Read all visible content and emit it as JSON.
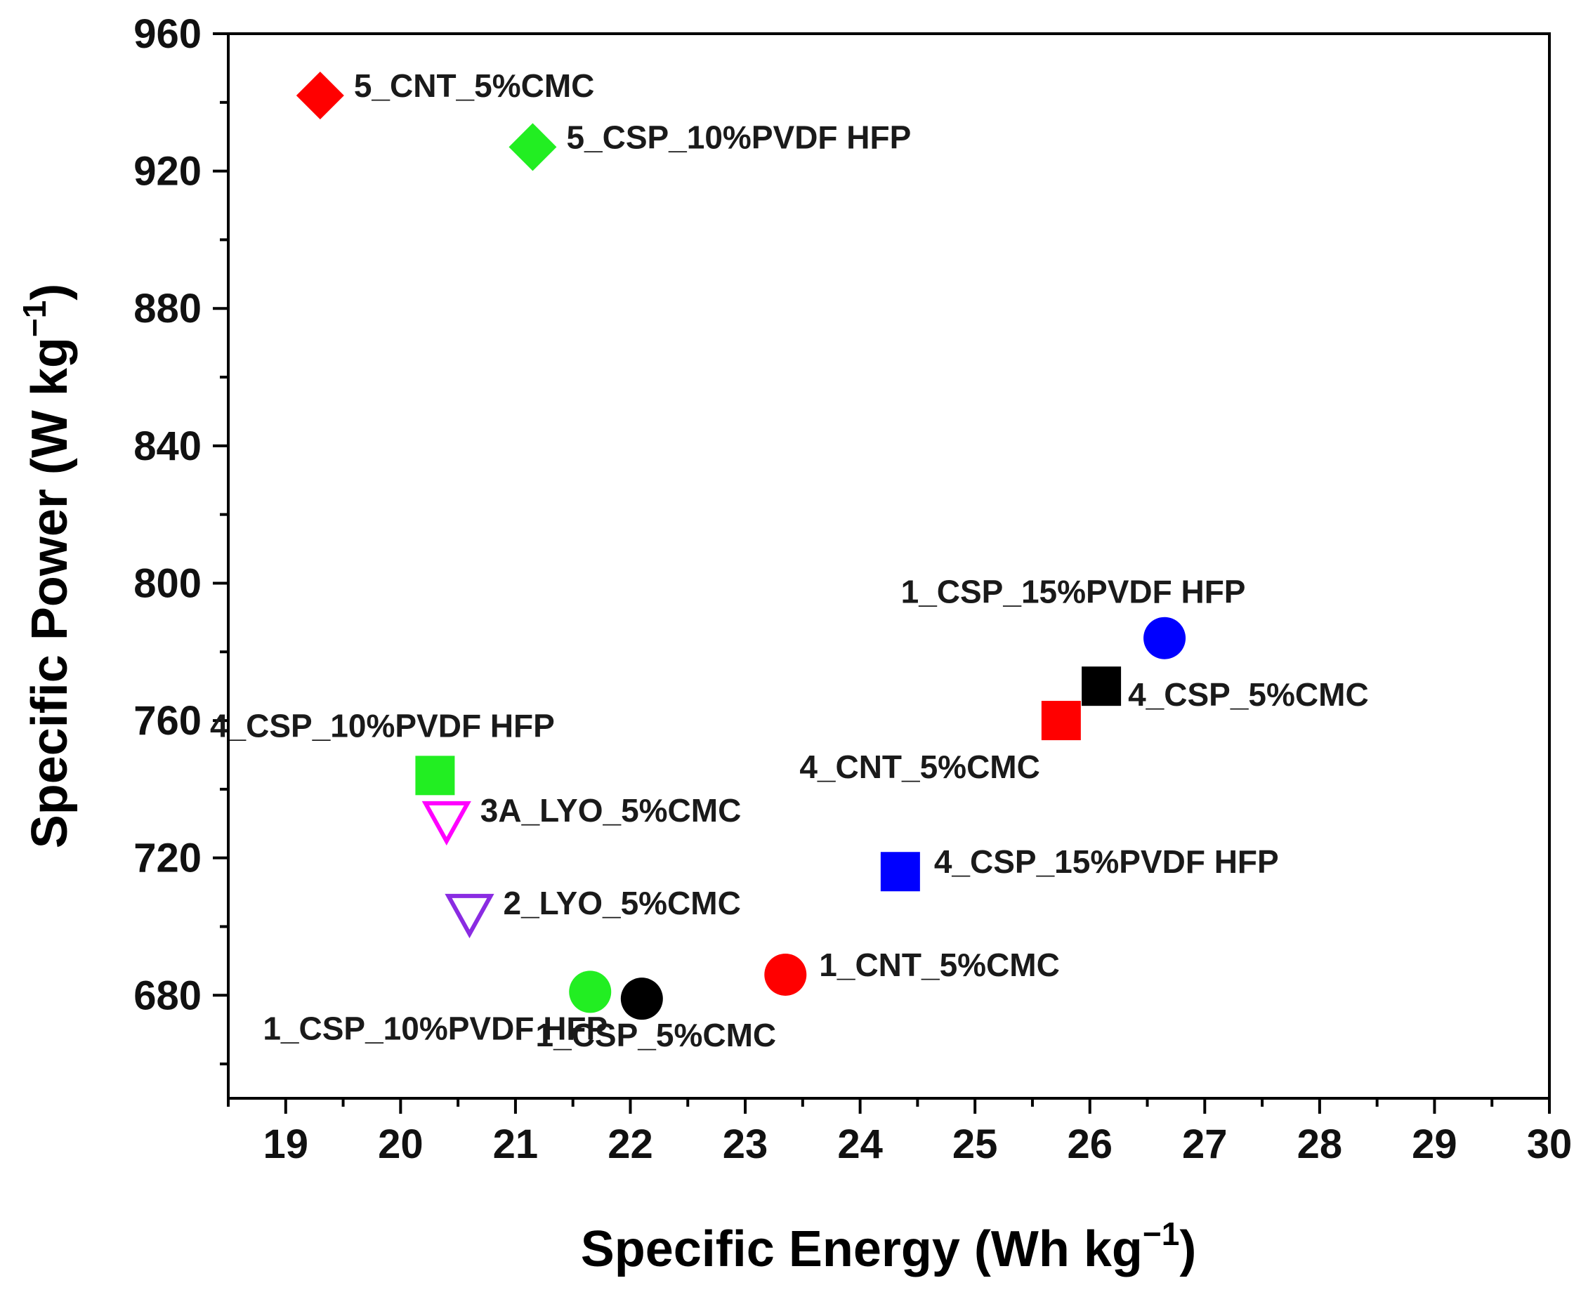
{
  "chart_data": {
    "type": "scatter",
    "xlabel": "Specific Energy (Wh kg",
    "xlabel_sup": "−1",
    "xlabel_end": ")",
    "ylabel": "Specific Power (W kg",
    "ylabel_sup": "−1",
    "ylabel_end": ")",
    "xlim": [
      18.5,
      30
    ],
    "ylim": [
      650,
      960
    ],
    "x_ticks": [
      19,
      20,
      21,
      22,
      23,
      24,
      25,
      26,
      27,
      28,
      29,
      30
    ],
    "y_ticks": [
      680,
      720,
      760,
      800,
      840,
      880,
      920,
      960
    ],
    "grid": false,
    "points": [
      {
        "label": "5_CNT_5%CMC",
        "x": 19.3,
        "y": 942,
        "marker": "diamond",
        "color": "#ff0000",
        "label_pos": "right"
      },
      {
        "label": "5_CSP_10%PVDF HFP",
        "x": 21.15,
        "y": 927,
        "marker": "diamond",
        "color": "#22ee22",
        "label_pos": "right"
      },
      {
        "label": "1_CSP_15%PVDF HFP",
        "x": 26.65,
        "y": 784,
        "marker": "circle",
        "color": "#0000ff",
        "label_pos": "above-left"
      },
      {
        "label": "4_CSP_5%CMC",
        "x": 26.1,
        "y": 770,
        "marker": "square",
        "color": "#000000",
        "label_pos": "below-right"
      },
      {
        "label": "4_CNT_5%CMC",
        "x": 25.75,
        "y": 760,
        "marker": "square",
        "color": "#ff0000",
        "label_pos": "below-left"
      },
      {
        "label": "4_CSP_10%PVDF HFP",
        "x": 20.3,
        "y": 744,
        "marker": "square",
        "color": "#22ee22",
        "label_pos": "above"
      },
      {
        "label": "3A_LYO_5%CMC",
        "x": 20.4,
        "y": 731,
        "marker": "triangle-down-open",
        "color": "#ff00ff",
        "label_pos": "right"
      },
      {
        "label": "4_CSP_15%PVDF HFP",
        "x": 24.35,
        "y": 716,
        "marker": "square",
        "color": "#0000ff",
        "label_pos": "right"
      },
      {
        "label": "2_LYO_5%CMC",
        "x": 20.6,
        "y": 704,
        "marker": "triangle-down-open",
        "color": "#8a2be2",
        "label_pos": "right"
      },
      {
        "label": "1_CNT_5%CMC",
        "x": 23.35,
        "y": 686,
        "marker": "circle",
        "color": "#ff0000",
        "label_pos": "right"
      },
      {
        "label": "1_CSP_10%PVDF HFP",
        "x": 21.65,
        "y": 681,
        "marker": "circle",
        "color": "#22ee22",
        "label_pos": "below-left"
      },
      {
        "label": "1_CSP_5%CMC",
        "x": 22.1,
        "y": 679,
        "marker": "circle",
        "color": "#000000",
        "label_pos": "below-right"
      }
    ]
  }
}
